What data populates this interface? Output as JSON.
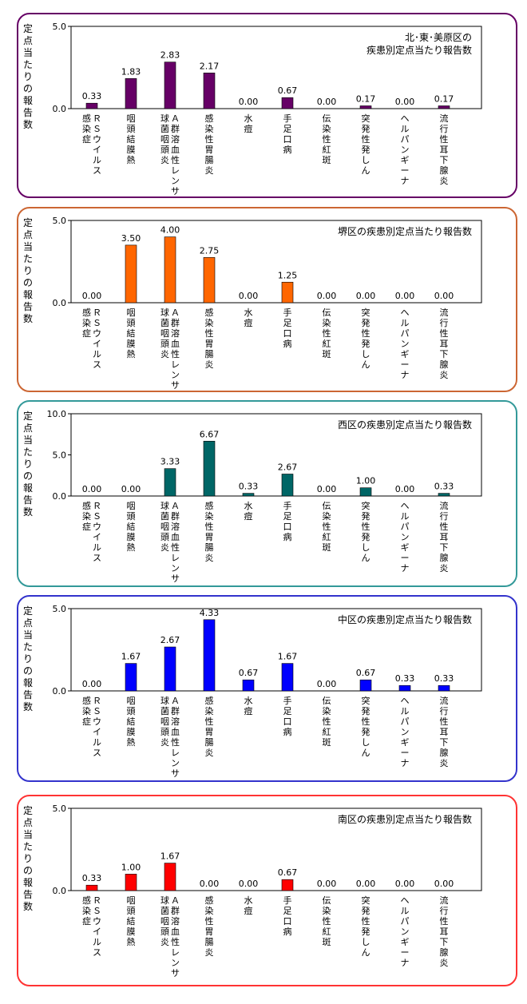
{
  "categories": [
    [
      "Ｒ",
      "Ｓ",
      "ウ",
      "イ",
      "ル",
      "ス",
      "感",
      "染",
      "症"
    ],
    [
      "咽",
      "頭",
      "結",
      "膜",
      "熱"
    ],
    [
      "Ａ",
      "群",
      "溶",
      "血",
      "性",
      "レ",
      "ン",
      "サ",
      "球",
      "菌",
      "咽",
      "頭",
      "炎"
    ],
    [
      "感",
      "染",
      "性",
      "胃",
      "腸",
      "炎"
    ],
    [
      "水",
      "痘"
    ],
    [
      "手",
      "足",
      "口",
      "病"
    ],
    [
      "伝",
      "染",
      "性",
      "紅",
      "斑"
    ],
    [
      "突",
      "発",
      "性",
      "発",
      "し",
      "ん"
    ],
    [
      "ヘ",
      "ル",
      "パ",
      "ン",
      "ギ",
      "ー",
      "ナ"
    ],
    [
      "流",
      "行",
      "性",
      "耳",
      "下",
      "腺",
      "炎"
    ]
  ],
  "ylabel_chars": [
    "定",
    "点",
    "当",
    "た",
    "り",
    "の",
    "報",
    "告",
    "数"
  ],
  "chart_data": [
    {
      "type": "bar",
      "title": "北･東･美原区の\n疾患別定点当たり報告数",
      "color": "#660066",
      "ylim": [
        0,
        5
      ],
      "yticks": [
        "0.0",
        "5.0"
      ],
      "values": [
        0.33,
        1.83,
        2.83,
        2.17,
        0.0,
        0.67,
        0.0,
        0.17,
        0.0,
        0.17
      ],
      "value_labels": [
        "0.33",
        "1.83",
        "2.83",
        "2.17",
        "0.00",
        "0.67",
        "0.00",
        "0.17",
        "0.00",
        "0.17"
      ]
    },
    {
      "type": "bar",
      "title": "堺区の疾患別定点当たり報告数",
      "color": "#ff6600",
      "ylim": [
        0,
        5
      ],
      "yticks": [
        "0.0",
        "5.0"
      ],
      "values": [
        0.0,
        3.5,
        4.0,
        2.75,
        0.0,
        1.25,
        0.0,
        0.0,
        0.0,
        0.0
      ],
      "value_labels": [
        "0.00",
        "3.50",
        "4.00",
        "2.75",
        "0.00",
        "1.25",
        "0.00",
        "0.00",
        "0.00",
        "0.00"
      ]
    },
    {
      "type": "bar",
      "title": "西区の疾患別定点当たり報告数",
      "color": "#006666",
      "ylim": [
        0,
        10
      ],
      "yticks": [
        "0.0",
        "5.0",
        "10.0"
      ],
      "values": [
        0.0,
        0.0,
        3.33,
        6.67,
        0.33,
        2.67,
        0.0,
        1.0,
        0.0,
        0.33
      ],
      "value_labels": [
        "0.00",
        "0.00",
        "3.33",
        "6.67",
        "0.33",
        "2.67",
        "0.00",
        "1.00",
        "0.00",
        "0.33"
      ]
    },
    {
      "type": "bar",
      "title": "中区の疾患別定点当たり報告数",
      "color": "#0000ff",
      "ylim": [
        0,
        5
      ],
      "yticks": [
        "0.0",
        "5.0"
      ],
      "values": [
        0.0,
        1.67,
        2.67,
        4.33,
        0.67,
        1.67,
        0.0,
        0.67,
        0.33,
        0.33
      ],
      "value_labels": [
        "0.00",
        "1.67",
        "2.67",
        "4.33",
        "0.67",
        "1.67",
        "0.00",
        "0.67",
        "0.33",
        "0.33"
      ]
    },
    {
      "type": "bar",
      "title": "南区の疾患別定点当たり報告数",
      "color": "#ff0000",
      "ylim": [
        0,
        5
      ],
      "yticks": [
        "0.0",
        "5.0"
      ],
      "values": [
        0.33,
        1.0,
        1.67,
        0.0,
        0.0,
        0.67,
        0.0,
        0.0,
        0.0,
        0.0
      ],
      "value_labels": [
        "0.33",
        "1.00",
        "1.67",
        "0.00",
        "0.00",
        "0.67",
        "0.00",
        "0.00",
        "0.00",
        "0.00"
      ]
    }
  ],
  "borders": [
    "#660066",
    "#cc6633",
    "#339999",
    "#3333cc",
    "#ff3333"
  ]
}
